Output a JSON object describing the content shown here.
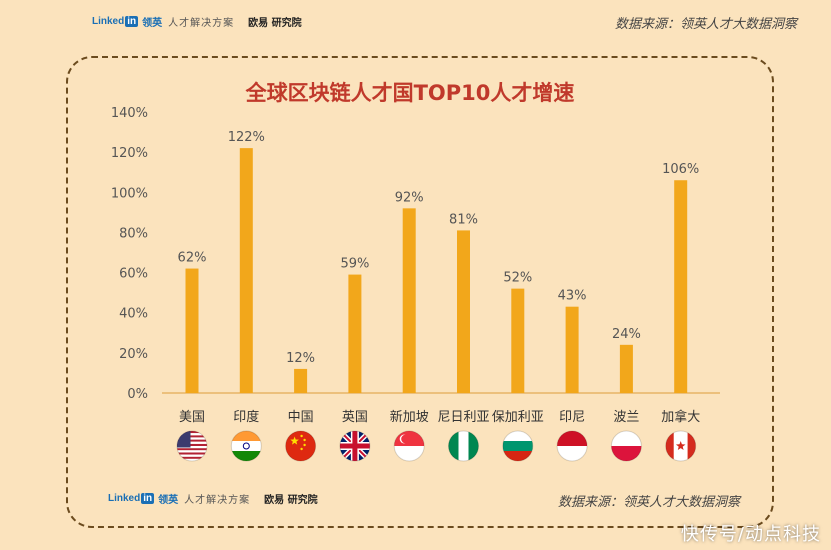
{
  "header": {
    "brand_linkedin": "Linked",
    "brand_in": "in",
    "brand_cn": "领英",
    "brand_sub": "人才解决方案",
    "brand_oy": "欧易 研究院",
    "source": "数据来源：领英人才大数据洞察"
  },
  "footer": {
    "brand_linkedin": "Linked",
    "brand_in": "in",
    "brand_cn": "领英",
    "brand_sub": "人才解决方案",
    "brand_oy": "欧易 研究院",
    "source": "数据来源：领英人才大数据洞察"
  },
  "watermark": "快传号/动点科技",
  "chart_data": {
    "type": "bar",
    "title": "全球区块链人才国TOP10人才增速",
    "categories": [
      "美国",
      "印度",
      "中国",
      "英国",
      "新加坡",
      "尼日利亚",
      "保加利亚",
      "印尼",
      "波兰",
      "加拿大"
    ],
    "values": [
      62,
      122,
      12,
      59,
      92,
      81,
      52,
      43,
      24,
      106
    ],
    "value_labels": [
      "62%",
      "122%",
      "12%",
      "59%",
      "92%",
      "81%",
      "52%",
      "43%",
      "24%",
      "106%"
    ],
    "yticks": [
      "0%",
      "20%",
      "40%",
      "60%",
      "80%",
      "100%",
      "120%",
      "140%"
    ],
    "ylim": [
      0,
      140
    ],
    "grid": false,
    "bar_color": "#f2a71b",
    "flags": [
      "us-flag-icon",
      "india-flag-icon",
      "china-flag-icon",
      "uk-flag-icon",
      "singapore-flag-icon",
      "nigeria-flag-icon",
      "bulgaria-flag-icon",
      "indonesia-flag-icon",
      "poland-flag-icon",
      "canada-flag-icon"
    ]
  }
}
